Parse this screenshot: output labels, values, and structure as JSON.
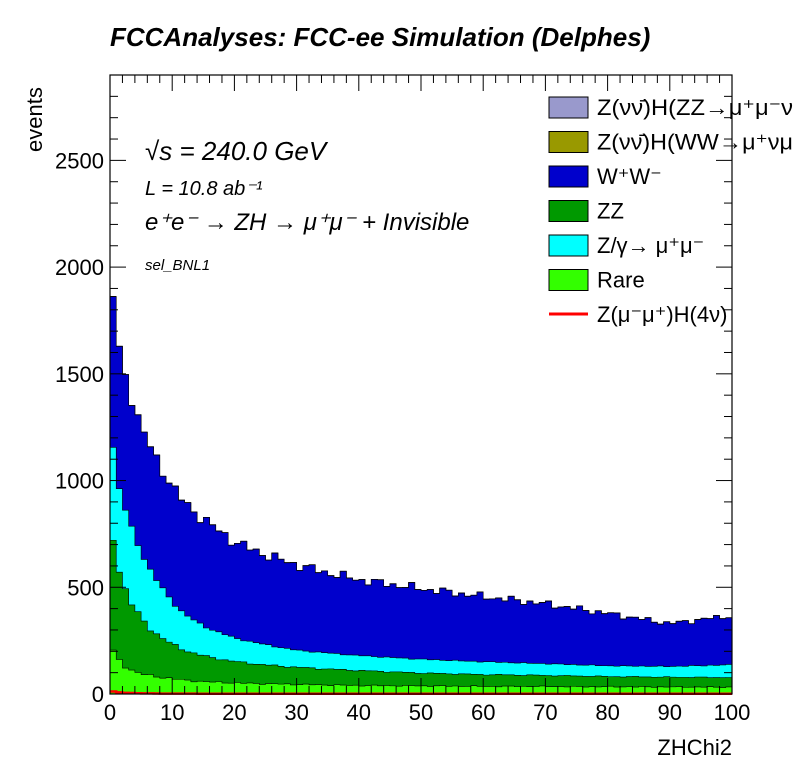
{
  "title": "FCCAnalyses: FCC-ee Simulation (Delphes)",
  "annotations": {
    "energy_label": "√s = 240.0 GeV",
    "lumi_label": "L = 10.8 ab⁻¹",
    "process_label": "e⁺e⁻ → ZH → μ⁺μ⁻ + Invisible",
    "selection_label": "sel_BNL1"
  },
  "chart_data": {
    "type": "area",
    "title": "FCCAnalyses: FCC-ee Simulation (Delphes)",
    "xlabel": "ZHChi2",
    "ylabel": "events",
    "xlim": [
      0,
      100
    ],
    "ylim": [
      0,
      2900
    ],
    "grid": false,
    "legend_position": "top-right",
    "stacked": true,
    "x_ticks": [
      "0",
      "10",
      "20",
      "30",
      "40",
      "50",
      "60",
      "70",
      "80",
      "90",
      "100"
    ],
    "y_ticks": [
      "0",
      "500",
      "1000",
      "1500",
      "2000",
      "2500"
    ],
    "x_breakpoints": [
      0,
      1,
      2,
      3,
      4,
      5,
      6,
      8,
      10,
      12,
      15,
      20,
      25,
      30,
      35,
      40,
      50,
      60,
      70,
      80,
      90,
      100
    ],
    "series": [
      {
        "name": "Rare",
        "color": "#33ff00",
        "values": [
          230,
          170,
          140,
          120,
          105,
          95,
          88,
          80,
          72,
          65,
          58,
          52,
          48,
          45,
          42,
          40,
          38,
          36,
          35,
          34,
          33,
          32
        ]
      },
      {
        "name": "ZZ",
        "color": "#009900",
        "values": [
          590,
          470,
          390,
          330,
          290,
          260,
          230,
          190,
          160,
          140,
          120,
          100,
          88,
          80,
          75,
          70,
          60,
          55,
          52,
          48,
          46,
          45
        ]
      },
      {
        "name": "Z/γ→ μ⁺μ⁻",
        "color": "#00ffff",
        "values": [
          470,
          390,
          380,
          360,
          340,
          310,
          290,
          240,
          200,
          170,
          140,
          110,
          95,
          80,
          75,
          70,
          65,
          60,
          55,
          50,
          50,
          60
        ]
      },
      {
        "name": "W⁺W⁻",
        "color": "#0000cc",
        "values": [
          780,
          650,
          640,
          620,
          600,
          590,
          580,
          560,
          540,
          520,
          500,
          450,
          420,
          400,
          375,
          355,
          330,
          305,
          280,
          245,
          200,
          230
        ]
      },
      {
        "name": "Z(νν̄)H(WW→μ⁺νμ⁻ν̄)",
        "color": "#999900",
        "values": [
          1,
          1,
          1,
          1,
          1,
          1,
          1,
          1,
          1,
          1,
          1,
          1,
          1,
          1,
          1,
          1,
          1,
          1,
          1,
          1,
          1,
          1
        ]
      },
      {
        "name": "Z(νν̄)H(ZZ→μ⁺μ⁻νν̄)",
        "color": "#9999cc",
        "values": [
          0,
          0,
          0,
          0,
          0,
          0,
          0,
          0,
          0,
          0,
          0,
          0,
          0,
          0,
          0,
          0,
          0,
          0,
          0,
          0,
          0,
          0
        ]
      }
    ],
    "signal": {
      "name": "Z(μ⁻μ⁺)H(4ν)",
      "color": "#ff0000",
      "values": [
        14,
        9,
        6,
        5,
        4,
        3,
        3,
        2,
        2,
        2,
        1,
        1,
        1,
        1,
        1,
        1,
        1,
        1,
        1,
        1,
        1,
        1
      ]
    },
    "legend": [
      {
        "label": "Z(νν̄)H(ZZ→μ⁺μ⁻ν",
        "color": "#9999cc",
        "kind": "box"
      },
      {
        "label": "Z(νν̄)H(WW→μ⁺νμ",
        "color": "#999900",
        "kind": "box"
      },
      {
        "label": "W⁺W⁻",
        "color": "#0000cc",
        "kind": "box"
      },
      {
        "label": "ZZ",
        "color": "#009900",
        "kind": "box"
      },
      {
        "label": "Z/γ→ μ⁺μ⁻",
        "color": "#00ffff",
        "kind": "box"
      },
      {
        "label": "Rare",
        "color": "#33ff00",
        "kind": "box"
      },
      {
        "label": "Z(μ⁻μ⁺)H(4ν)",
        "color": "#ff0000",
        "kind": "line"
      }
    ]
  }
}
